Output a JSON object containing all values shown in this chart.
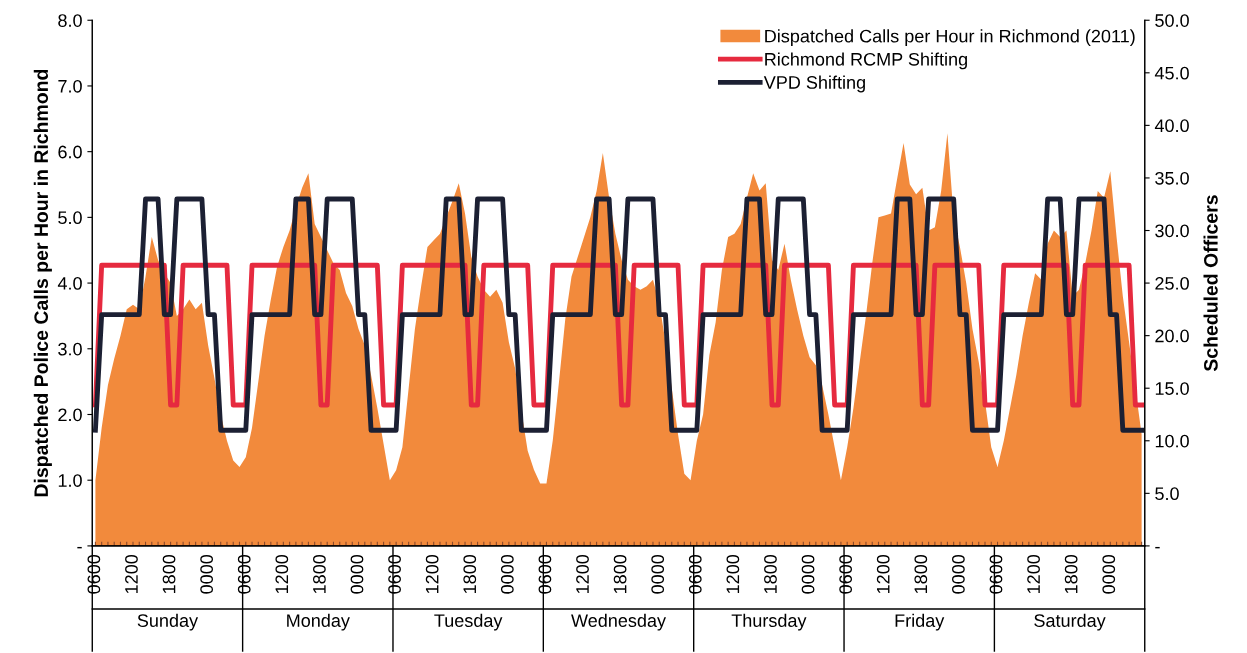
{
  "chart_data": {
    "type": "area",
    "ylabel": "Dispatched Police Calls per Hour in Richmond",
    "y2label": "Scheduled Officers",
    "categories": [
      "0600",
      null,
      null,
      null,
      null,
      null,
      "1200",
      null,
      null,
      null,
      null,
      null,
      "1800",
      null,
      null,
      null,
      null,
      null,
      "0000",
      null,
      null,
      null,
      null,
      null,
      "0600",
      null,
      null,
      null,
      null,
      null,
      "1200",
      null,
      null,
      null,
      null,
      null,
      "1800",
      null,
      null,
      null,
      null,
      null,
      "0000",
      null,
      null,
      null,
      null,
      null,
      "0600",
      null,
      null,
      null,
      null,
      null,
      "1200",
      null,
      null,
      null,
      null,
      null,
      "1800",
      null,
      null,
      null,
      null,
      null,
      "0000",
      null,
      null,
      null,
      null,
      null,
      "0600",
      null,
      null,
      null,
      null,
      null,
      "1200",
      null,
      null,
      null,
      null,
      null,
      "1800",
      null,
      null,
      null,
      null,
      null,
      "0000",
      null,
      null,
      null,
      null,
      null,
      "0600",
      null,
      null,
      null,
      null,
      null,
      "1200",
      null,
      null,
      null,
      null,
      null,
      "1800",
      null,
      null,
      null,
      null,
      null,
      "0000",
      null,
      null,
      null,
      null,
      null,
      "0600",
      null,
      null,
      null,
      null,
      null,
      "1200",
      null,
      null,
      null,
      null,
      null,
      "1800",
      null,
      null,
      null,
      null,
      null,
      "0000",
      null,
      null,
      null,
      null,
      null,
      "0600",
      null,
      null,
      null,
      null,
      null,
      "1200",
      null,
      null,
      null,
      null,
      null,
      "1800",
      null,
      null,
      null,
      null,
      null,
      "0000",
      null,
      null,
      null,
      null,
      null
    ],
    "ylim": [
      0,
      8
    ],
    "yticks": [
      {
        "value": 0,
        "label": "-"
      },
      {
        "value": 1,
        "label": "1.0"
      },
      {
        "value": 2,
        "label": "2.0"
      },
      {
        "value": 3,
        "label": "3.0"
      },
      {
        "value": 4,
        "label": "4.0"
      },
      {
        "value": 5,
        "label": "5.0"
      },
      {
        "value": 6,
        "label": "6.0"
      },
      {
        "value": 7,
        "label": "7.0"
      },
      {
        "value": 8,
        "label": "8.0"
      }
    ],
    "y2lim": [
      0,
      50
    ],
    "y2ticks": [
      {
        "value": 0,
        "label": "-"
      },
      {
        "value": 5,
        "label": "5.0"
      },
      {
        "value": 10,
        "label": "10.0"
      },
      {
        "value": 15,
        "label": "15.0"
      },
      {
        "value": 20,
        "label": "20.0"
      },
      {
        "value": 25,
        "label": "25.0"
      },
      {
        "value": 30,
        "label": "30.0"
      },
      {
        "value": 35,
        "label": "35.0"
      },
      {
        "value": 40,
        "label": "40.0"
      },
      {
        "value": 45,
        "label": "45.0"
      },
      {
        "value": 50,
        "label": "50.0"
      }
    ],
    "annotations": [
      "Sunday",
      "Monday",
      "Tuesday",
      "Wednesday",
      "Thursday",
      "Friday",
      "Saturday"
    ],
    "legend": "top right",
    "series": [
      {
        "name": "Dispatched Calls per Hour in Richmond (2011)",
        "color": "#f28a3c",
        "values": [
          1.0,
          1.8,
          2.45,
          2.85,
          3.2,
          3.6,
          3.67,
          3.6,
          4.1,
          4.7,
          4.35,
          4.15,
          4.0,
          3.5,
          3.6,
          3.75,
          3.6,
          3.7,
          3.05,
          2.55,
          2.0,
          1.6,
          1.3,
          1.2,
          1.35,
          1.8,
          2.5,
          3.2,
          3.75,
          4.25,
          4.55,
          4.8,
          5.15,
          5.45,
          5.67,
          4.9,
          4.7,
          4.5,
          4.3,
          4.2,
          3.85,
          3.65,
          3.3,
          3.05,
          2.6,
          2.1,
          1.55,
          1.0,
          1.15,
          1.5,
          2.4,
          3.3,
          3.95,
          4.55,
          4.65,
          4.75,
          5.0,
          5.25,
          5.52,
          5.06,
          4.4,
          4.1,
          3.9,
          3.79,
          3.9,
          3.7,
          3.1,
          2.7,
          2.05,
          1.45,
          1.16,
          0.95,
          0.95,
          1.6,
          2.5,
          3.45,
          4.1,
          4.4,
          4.7,
          5.0,
          5.4,
          5.98,
          5.3,
          4.75,
          4.35,
          4.05,
          3.95,
          3.9,
          3.95,
          4.05,
          3.7,
          3.1,
          2.4,
          1.7,
          1.1,
          1.0,
          1.6,
          2.0,
          2.9,
          3.4,
          4.2,
          4.7,
          4.75,
          4.9,
          5.3,
          5.67,
          5.41,
          5.52,
          4.35,
          4.2,
          4.6,
          4.05,
          3.6,
          3.2,
          2.87,
          2.75,
          2.45,
          2.0,
          1.5,
          1.0,
          1.5,
          2.1,
          2.8,
          3.5,
          4.3,
          5.0,
          5.03,
          5.06,
          5.6,
          6.13,
          5.5,
          5.35,
          5.45,
          4.8,
          4.85,
          5.4,
          6.28,
          5.0,
          4.55,
          4.0,
          3.3,
          2.8,
          2.2,
          1.5,
          1.2,
          1.6,
          2.1,
          2.6,
          3.2,
          3.7,
          4.15,
          4.05,
          4.6,
          4.8,
          4.7,
          4.8,
          3.8,
          3.9,
          4.3,
          4.8,
          5.4,
          5.3,
          5.7,
          4.7,
          3.8,
          3.1,
          2.4,
          1.7
        ]
      },
      {
        "name": "Richmond RCMP Shifting",
        "type": "line",
        "axis": "y2",
        "color": "#e62a3f",
        "line_style": "solid",
        "values": [
          13.4,
          26.7,
          26.7,
          26.7,
          26.7,
          26.7,
          26.7,
          26.7,
          26.7,
          26.7,
          26.7,
          26.7,
          13.4,
          13.4,
          26.7,
          26.7,
          26.7,
          26.7,
          26.7,
          26.7,
          26.7,
          26.7,
          13.4,
          13.4,
          13.4,
          26.7,
          26.7,
          26.7,
          26.7,
          26.7,
          26.7,
          26.7,
          26.7,
          26.7,
          26.7,
          26.7,
          13.4,
          13.4,
          26.7,
          26.7,
          26.7,
          26.7,
          26.7,
          26.7,
          26.7,
          26.7,
          13.4,
          13.4,
          13.4,
          26.7,
          26.7,
          26.7,
          26.7,
          26.7,
          26.7,
          26.7,
          26.7,
          26.7,
          26.7,
          26.7,
          13.4,
          13.4,
          26.7,
          26.7,
          26.7,
          26.7,
          26.7,
          26.7,
          26.7,
          26.7,
          13.4,
          13.4,
          13.4,
          26.7,
          26.7,
          26.7,
          26.7,
          26.7,
          26.7,
          26.7,
          26.7,
          26.7,
          26.7,
          26.7,
          13.4,
          13.4,
          26.7,
          26.7,
          26.7,
          26.7,
          26.7,
          26.7,
          26.7,
          26.7,
          13.4,
          13.4,
          13.4,
          26.7,
          26.7,
          26.7,
          26.7,
          26.7,
          26.7,
          26.7,
          26.7,
          26.7,
          26.7,
          26.7,
          13.4,
          13.4,
          26.7,
          26.7,
          26.7,
          26.7,
          26.7,
          26.7,
          26.7,
          26.7,
          13.4,
          13.4,
          13.4,
          26.7,
          26.7,
          26.7,
          26.7,
          26.7,
          26.7,
          26.7,
          26.7,
          26.7,
          26.7,
          26.7,
          13.4,
          13.4,
          26.7,
          26.7,
          26.7,
          26.7,
          26.7,
          26.7,
          26.7,
          26.7,
          13.4,
          13.4,
          13.4,
          26.7,
          26.7,
          26.7,
          26.7,
          26.7,
          26.7,
          26.7,
          26.7,
          26.7,
          26.7,
          26.7,
          13.4,
          13.4,
          26.7,
          26.7,
          26.7,
          26.7,
          26.7,
          26.7,
          26.7,
          26.7,
          13.4,
          13.4
        ]
      },
      {
        "name": "VPD Shifting",
        "type": "line",
        "axis": "y2",
        "color": "#1c2033",
        "line_style": "solid",
        "values": [
          11,
          22,
          22,
          22,
          22,
          22,
          22,
          22,
          33,
          33,
          33,
          22,
          22,
          33,
          33,
          33,
          33,
          33,
          22,
          22,
          11,
          11,
          11,
          11,
          11,
          22,
          22,
          22,
          22,
          22,
          22,
          22,
          33,
          33,
          33,
          22,
          22,
          33,
          33,
          33,
          33,
          33,
          22,
          22,
          11,
          11,
          11,
          11,
          11,
          22,
          22,
          22,
          22,
          22,
          22,
          22,
          33,
          33,
          33,
          22,
          22,
          33,
          33,
          33,
          33,
          33,
          22,
          22,
          11,
          11,
          11,
          11,
          11,
          22,
          22,
          22,
          22,
          22,
          22,
          22,
          33,
          33,
          33,
          22,
          22,
          33,
          33,
          33,
          33,
          33,
          22,
          22,
          11,
          11,
          11,
          11,
          11,
          22,
          22,
          22,
          22,
          22,
          22,
          22,
          33,
          33,
          33,
          22,
          22,
          33,
          33,
          33,
          33,
          33,
          22,
          22,
          11,
          11,
          11,
          11,
          11,
          22,
          22,
          22,
          22,
          22,
          22,
          22,
          33,
          33,
          33,
          22,
          22,
          33,
          33,
          33,
          33,
          33,
          22,
          22,
          11,
          11,
          11,
          11,
          11,
          22,
          22,
          22,
          22,
          22,
          22,
          22,
          33,
          33,
          33,
          22,
          22,
          33,
          33,
          33,
          33,
          33,
          22,
          22,
          11,
          11,
          11,
          11
        ]
      }
    ]
  }
}
